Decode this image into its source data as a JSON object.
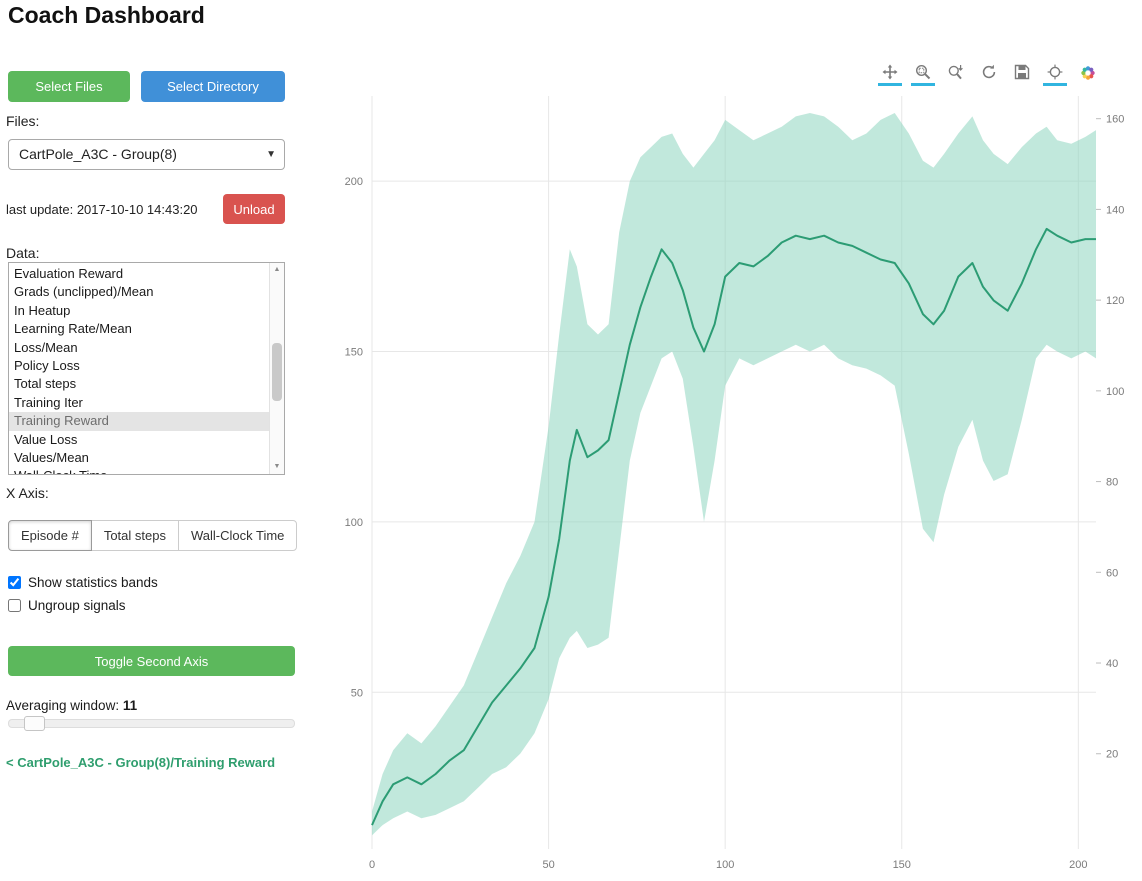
{
  "title": "Coach Dashboard",
  "sidebar": {
    "select_files": "Select Files",
    "select_directory": "Select Directory",
    "files_label": "Files:",
    "files_selected": "CartPole_A3C - Group(8)",
    "last_update": "last update: 2017-10-10 14:43:20",
    "unload": "Unload",
    "data_label": "Data:",
    "data_items": [
      "Evaluation Reward",
      "Grads (unclipped)/Mean",
      "In Heatup",
      "Learning Rate/Mean",
      "Loss/Mean",
      "Policy Loss",
      "Total steps",
      "Training Iter",
      "Training Reward",
      "Value Loss",
      "Values/Mean",
      "Wall-Clock Time"
    ],
    "selected_item": "Training Reward",
    "x_axis_label": "X Axis:",
    "x_axis_options": [
      "Episode #",
      "Total steps",
      "Wall-Clock Time"
    ],
    "x_axis_selected": "Episode #",
    "show_bands_label": "Show statistics bands",
    "show_bands_checked": true,
    "ungroup_label": "Ungroup signals",
    "ungroup_checked": false,
    "toggle_second_axis": "Toggle Second Axis",
    "averaging_label": "Averaging window:",
    "averaging_value": "11",
    "breadcrumb": "< CartPole_A3C - Group(8)/Training Reward"
  },
  "toolbar": {
    "tools": [
      "pan",
      "box-zoom",
      "wheel-zoom",
      "reset",
      "save",
      "hover"
    ],
    "active": [
      "pan",
      "box-zoom",
      "hover"
    ],
    "active_color": "#31b5e0"
  },
  "chart_data": {
    "type": "line",
    "title": "",
    "xlabel": "Episode #",
    "ylabel": "Training Reward",
    "xlim": [
      0,
      205
    ],
    "ylim_left": [
      4,
      225
    ],
    "ylim_right": [
      -1,
      165
    ],
    "x_ticks": [
      0,
      50,
      100,
      150,
      200
    ],
    "y_ticks_left": [
      50,
      100,
      150,
      200
    ],
    "y_ticks_right": [
      20,
      40,
      60,
      80,
      100,
      120,
      140,
      160
    ],
    "line_color": "#2c9c74",
    "band_color": "#8ed6bf",
    "grid": true,
    "legend": "none",
    "x": [
      0,
      3,
      6,
      10,
      14,
      18,
      22,
      26,
      30,
      34,
      38,
      42,
      46,
      50,
      53,
      56,
      58,
      61,
      64,
      67,
      70,
      73,
      76,
      79,
      82,
      85,
      88,
      91,
      94,
      97,
      100,
      104,
      108,
      112,
      116,
      120,
      124,
      128,
      132,
      136,
      140,
      144,
      148,
      152,
      156,
      159,
      162,
      166,
      170,
      173,
      176,
      180,
      184,
      188,
      191,
      194,
      198,
      202,
      205
    ],
    "mean": [
      11,
      18,
      23,
      25,
      23,
      26,
      30,
      33,
      40,
      47,
      52,
      57,
      63,
      78,
      95,
      118,
      127,
      119,
      121,
      124,
      138,
      152,
      163,
      172,
      180,
      176,
      168,
      157,
      150,
      158,
      172,
      176,
      175,
      178,
      182,
      184,
      183,
      184,
      182,
      181,
      179,
      177,
      176,
      170,
      161,
      158,
      162,
      172,
      176,
      169,
      165,
      162,
      170,
      180,
      186,
      184,
      182,
      183,
      183
    ],
    "band_lower": [
      8,
      11,
      13,
      15,
      13,
      14,
      16,
      18,
      22,
      26,
      28,
      32,
      38,
      48,
      60,
      66,
      68,
      63,
      64,
      66,
      92,
      118,
      132,
      140,
      148,
      150,
      142,
      122,
      100,
      118,
      140,
      148,
      146,
      148,
      150,
      152,
      150,
      152,
      148,
      146,
      145,
      143,
      140,
      120,
      98,
      94,
      108,
      122,
      130,
      118,
      112,
      114,
      130,
      148,
      152,
      150,
      148,
      150,
      148
    ],
    "band_upper": [
      15,
      26,
      33,
      38,
      35,
      40,
      46,
      52,
      62,
      72,
      82,
      90,
      100,
      128,
      155,
      180,
      175,
      158,
      155,
      158,
      185,
      200,
      207,
      210,
      213,
      214,
      208,
      204,
      208,
      212,
      218,
      215,
      212,
      214,
      216,
      219,
      220,
      219,
      216,
      212,
      214,
      218,
      220,
      214,
      206,
      204,
      208,
      214,
      219,
      212,
      208,
      205,
      210,
      214,
      216,
      212,
      211,
      213,
      215
    ]
  }
}
